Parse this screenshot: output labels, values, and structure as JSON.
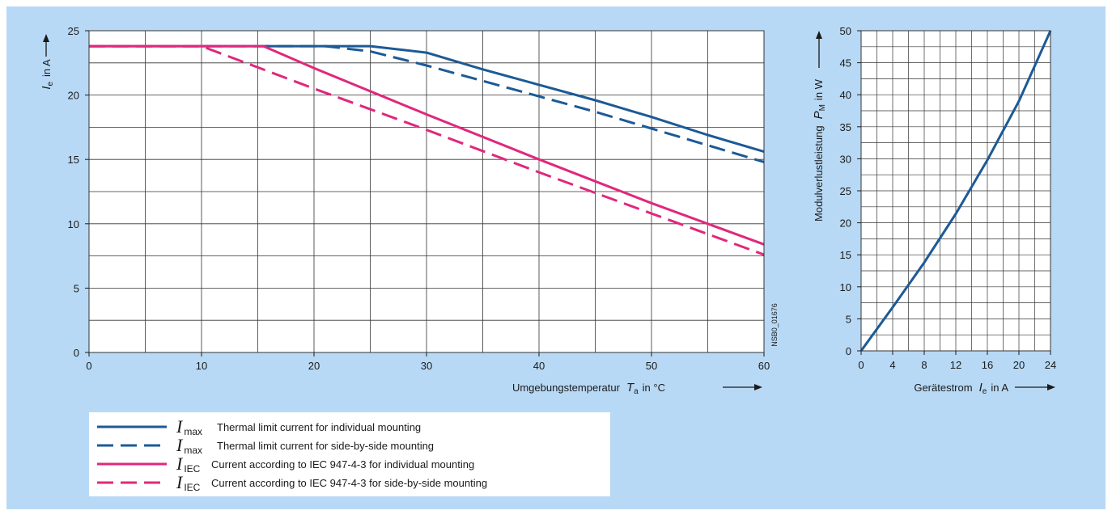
{
  "colors": {
    "background": "#b8d9f5",
    "blue": "#1c5a96",
    "magenta": "#e0287c",
    "grid": "#333333",
    "plot_bg": "#ffffff"
  },
  "chart_data": [
    {
      "type": "line",
      "xlabel": "Umgebungstemperatur",
      "xlabel_symbol": "T",
      "xlabel_sub": "a",
      "xlabel_unit": "in °C",
      "ylabel_symbol": "I",
      "ylabel_sub": "e",
      "ylabel_unit": "in A",
      "xlim": [
        0,
        60
      ],
      "ylim": [
        0,
        25
      ],
      "x_ticks": [
        "0",
        "10",
        "20",
        "30",
        "40",
        "50",
        "60"
      ],
      "y_ticks": [
        "0",
        "5",
        "10",
        "15",
        "20",
        "25"
      ],
      "grid": true,
      "figure_code": "NSB0_01676",
      "series": [
        {
          "name": "Thermal limit current for individual mounting",
          "symbol": "I",
          "sub": "max",
          "style": "solid",
          "color": "#1c5a96",
          "points": [
            [
              0,
              23.8
            ],
            [
              25,
              23.8
            ],
            [
              30,
              23.3
            ],
            [
              35,
              22.0
            ],
            [
              40,
              20.8
            ],
            [
              45,
              19.6
            ],
            [
              50,
              18.3
            ],
            [
              55,
              16.9
            ],
            [
              60,
              15.6
            ]
          ]
        },
        {
          "name": "Thermal limit current for side-by-side mounting",
          "symbol": "I",
          "sub": "max",
          "style": "dashed",
          "color": "#1c5a96",
          "points": [
            [
              0,
              23.8
            ],
            [
              21,
              23.8
            ],
            [
              25,
              23.4
            ],
            [
              30,
              22.3
            ],
            [
              35,
              21.1
            ],
            [
              40,
              19.9
            ],
            [
              45,
              18.7
            ],
            [
              50,
              17.4
            ],
            [
              55,
              16.1
            ],
            [
              60,
              14.8
            ]
          ]
        },
        {
          "name": "Current according to IEC 947-4-3 for individual mounting",
          "symbol": "I",
          "sub": "IEC",
          "style": "solid",
          "color": "#e0287c",
          "points": [
            [
              0,
              23.8
            ],
            [
              15.5,
              23.8
            ],
            [
              20,
              22.1
            ],
            [
              30,
              18.5
            ],
            [
              40,
              15.0
            ],
            [
              50,
              11.6
            ],
            [
              60,
              8.4
            ]
          ]
        },
        {
          "name": "Current according to IEC 947-4-3 for side-by-side mounting",
          "symbol": "I",
          "sub": "IEC",
          "style": "dashed",
          "color": "#e0287c",
          "points": [
            [
              0,
              23.8
            ],
            [
              10,
              23.8
            ],
            [
              20,
              20.5
            ],
            [
              30,
              17.3
            ],
            [
              40,
              14.0
            ],
            [
              50,
              10.8
            ],
            [
              60,
              7.6
            ]
          ]
        }
      ]
    },
    {
      "type": "line",
      "xlabel": "Gerätestrom",
      "xlabel_symbol": "I",
      "xlabel_sub": "e",
      "xlabel_unit": "in A",
      "ylabel": "Modulverlustleistung",
      "ylabel_symbol": "P",
      "ylabel_sub": "M",
      "ylabel_unit": "in W",
      "xlim": [
        0,
        24
      ],
      "ylim": [
        0,
        50
      ],
      "x_ticks": [
        "0",
        "4",
        "8",
        "12",
        "16",
        "20",
        "24"
      ],
      "y_ticks": [
        "0",
        "5",
        "10",
        "15",
        "20",
        "25",
        "30",
        "35",
        "40",
        "45",
        "50"
      ],
      "grid": true,
      "series": [
        {
          "style": "solid",
          "color": "#1c5a96",
          "points": [
            [
              0,
              0
            ],
            [
              4,
              6.8
            ],
            [
              8,
              13.8
            ],
            [
              12,
              21.4
            ],
            [
              16,
              29.8
            ],
            [
              20,
              39.0
            ],
            [
              24,
              50.0
            ]
          ]
        }
      ]
    }
  ]
}
